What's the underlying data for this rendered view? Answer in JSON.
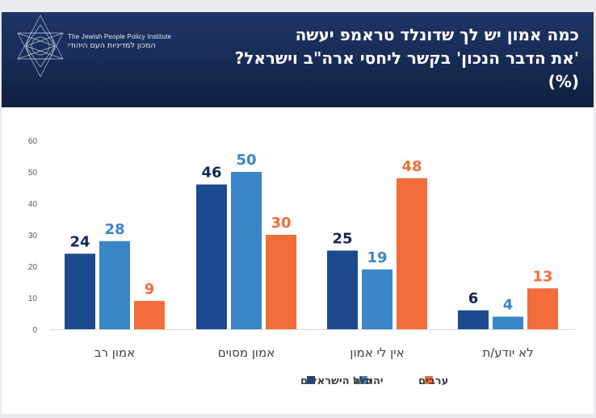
{
  "header": {
    "title_lines": [
      "כמה אמון יש לך שדונלד טראמפ יעשה",
      "'את הדבר הנכון' בקשר ליחסי ארה\"ב וישראל?",
      "(%)"
    ],
    "logo": {
      "icon": "star-of-david-icon",
      "name_en": "The Jewish People Policy Institute",
      "name_he": "המכון למדיניות העם היהודי"
    }
  },
  "colors": {
    "all_israelis": "#1B4A8E",
    "jews": "#3A86C8",
    "arabs": "#F26D3A",
    "label_all": "#12285A",
    "label_jews": "#3A86C8",
    "label_arabs": "#F26D3A",
    "header_bg": "#172C56",
    "frame_bg": "#ECEAEE"
  },
  "chart_data": {
    "type": "bar",
    "title": "כמה אמון יש לך שדונלד טראמפ יעשה 'את הדבר הנכון' בקשר ליחסי ארה\"ב וישראל? (%)",
    "categories": [
      "אמון רב",
      "אמון מסוים",
      "אין לי אמון",
      "לא יודע/ת"
    ],
    "series": [
      {
        "name": "כלל הישראלים",
        "key": "all_israelis",
        "values": [
          24,
          46,
          25,
          6
        ]
      },
      {
        "name": "יהודים",
        "key": "jews",
        "values": [
          28,
          50,
          19,
          4
        ]
      },
      {
        "name": "ערבים",
        "key": "arabs",
        "values": [
          9,
          30,
          48,
          13
        ]
      }
    ],
    "yticks": [
      0,
      10,
      20,
      30,
      40,
      50,
      60
    ],
    "ylim": [
      0,
      60
    ],
    "xlabel": "",
    "ylabel": "",
    "grid": false,
    "legend_position": "bottom",
    "legend_order_rtl": [
      "כלל הישראלים",
      "יהודים",
      "ערבים"
    ]
  }
}
